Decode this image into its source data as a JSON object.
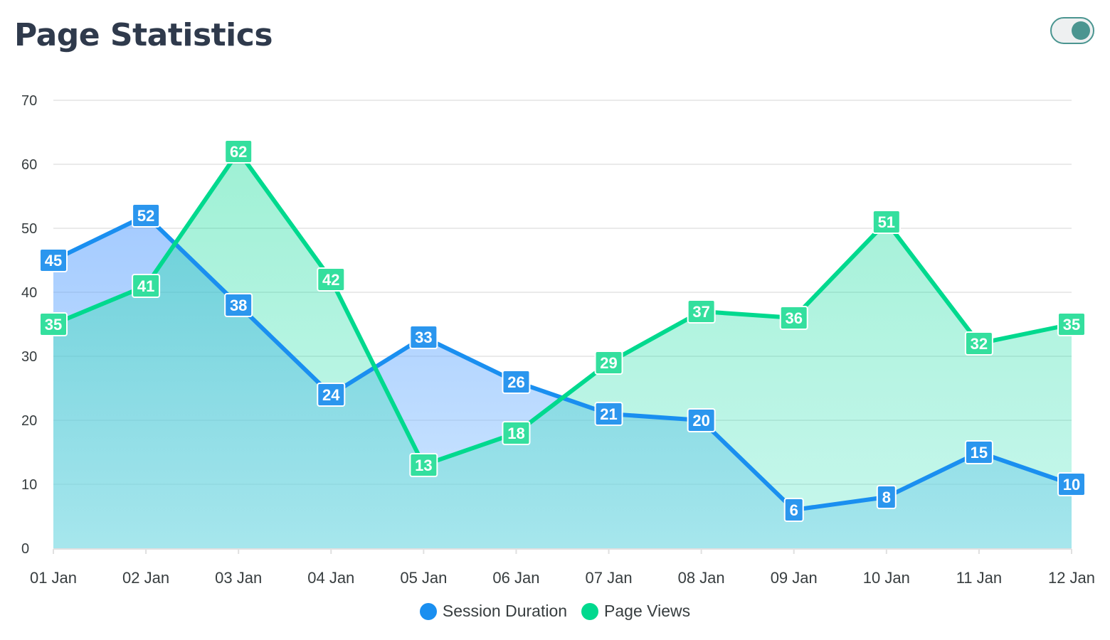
{
  "header": {
    "title": "Page Statistics"
  },
  "chart_data": {
    "type": "area",
    "categories": [
      "01 Jan",
      "02 Jan",
      "03 Jan",
      "04 Jan",
      "05 Jan",
      "06 Jan",
      "07 Jan",
      "08 Jan",
      "09 Jan",
      "10 Jan",
      "11 Jan",
      "12 Jan"
    ],
    "series": [
      {
        "name": "Session Duration",
        "color": "#1a8ff0",
        "values": [
          45,
          52,
          38,
          24,
          33,
          26,
          21,
          20,
          6,
          8,
          15,
          10
        ]
      },
      {
        "name": "Page Views",
        "color": "#00d98e",
        "values": [
          35,
          41,
          62,
          42,
          13,
          18,
          29,
          37,
          36,
          51,
          32,
          35
        ]
      }
    ],
    "ylim": [
      0,
      70
    ],
    "yticks": [
      0,
      10,
      20,
      30,
      40,
      50,
      60,
      70
    ],
    "grid": true,
    "data_labels": true,
    "legend": "bottom-center"
  }
}
